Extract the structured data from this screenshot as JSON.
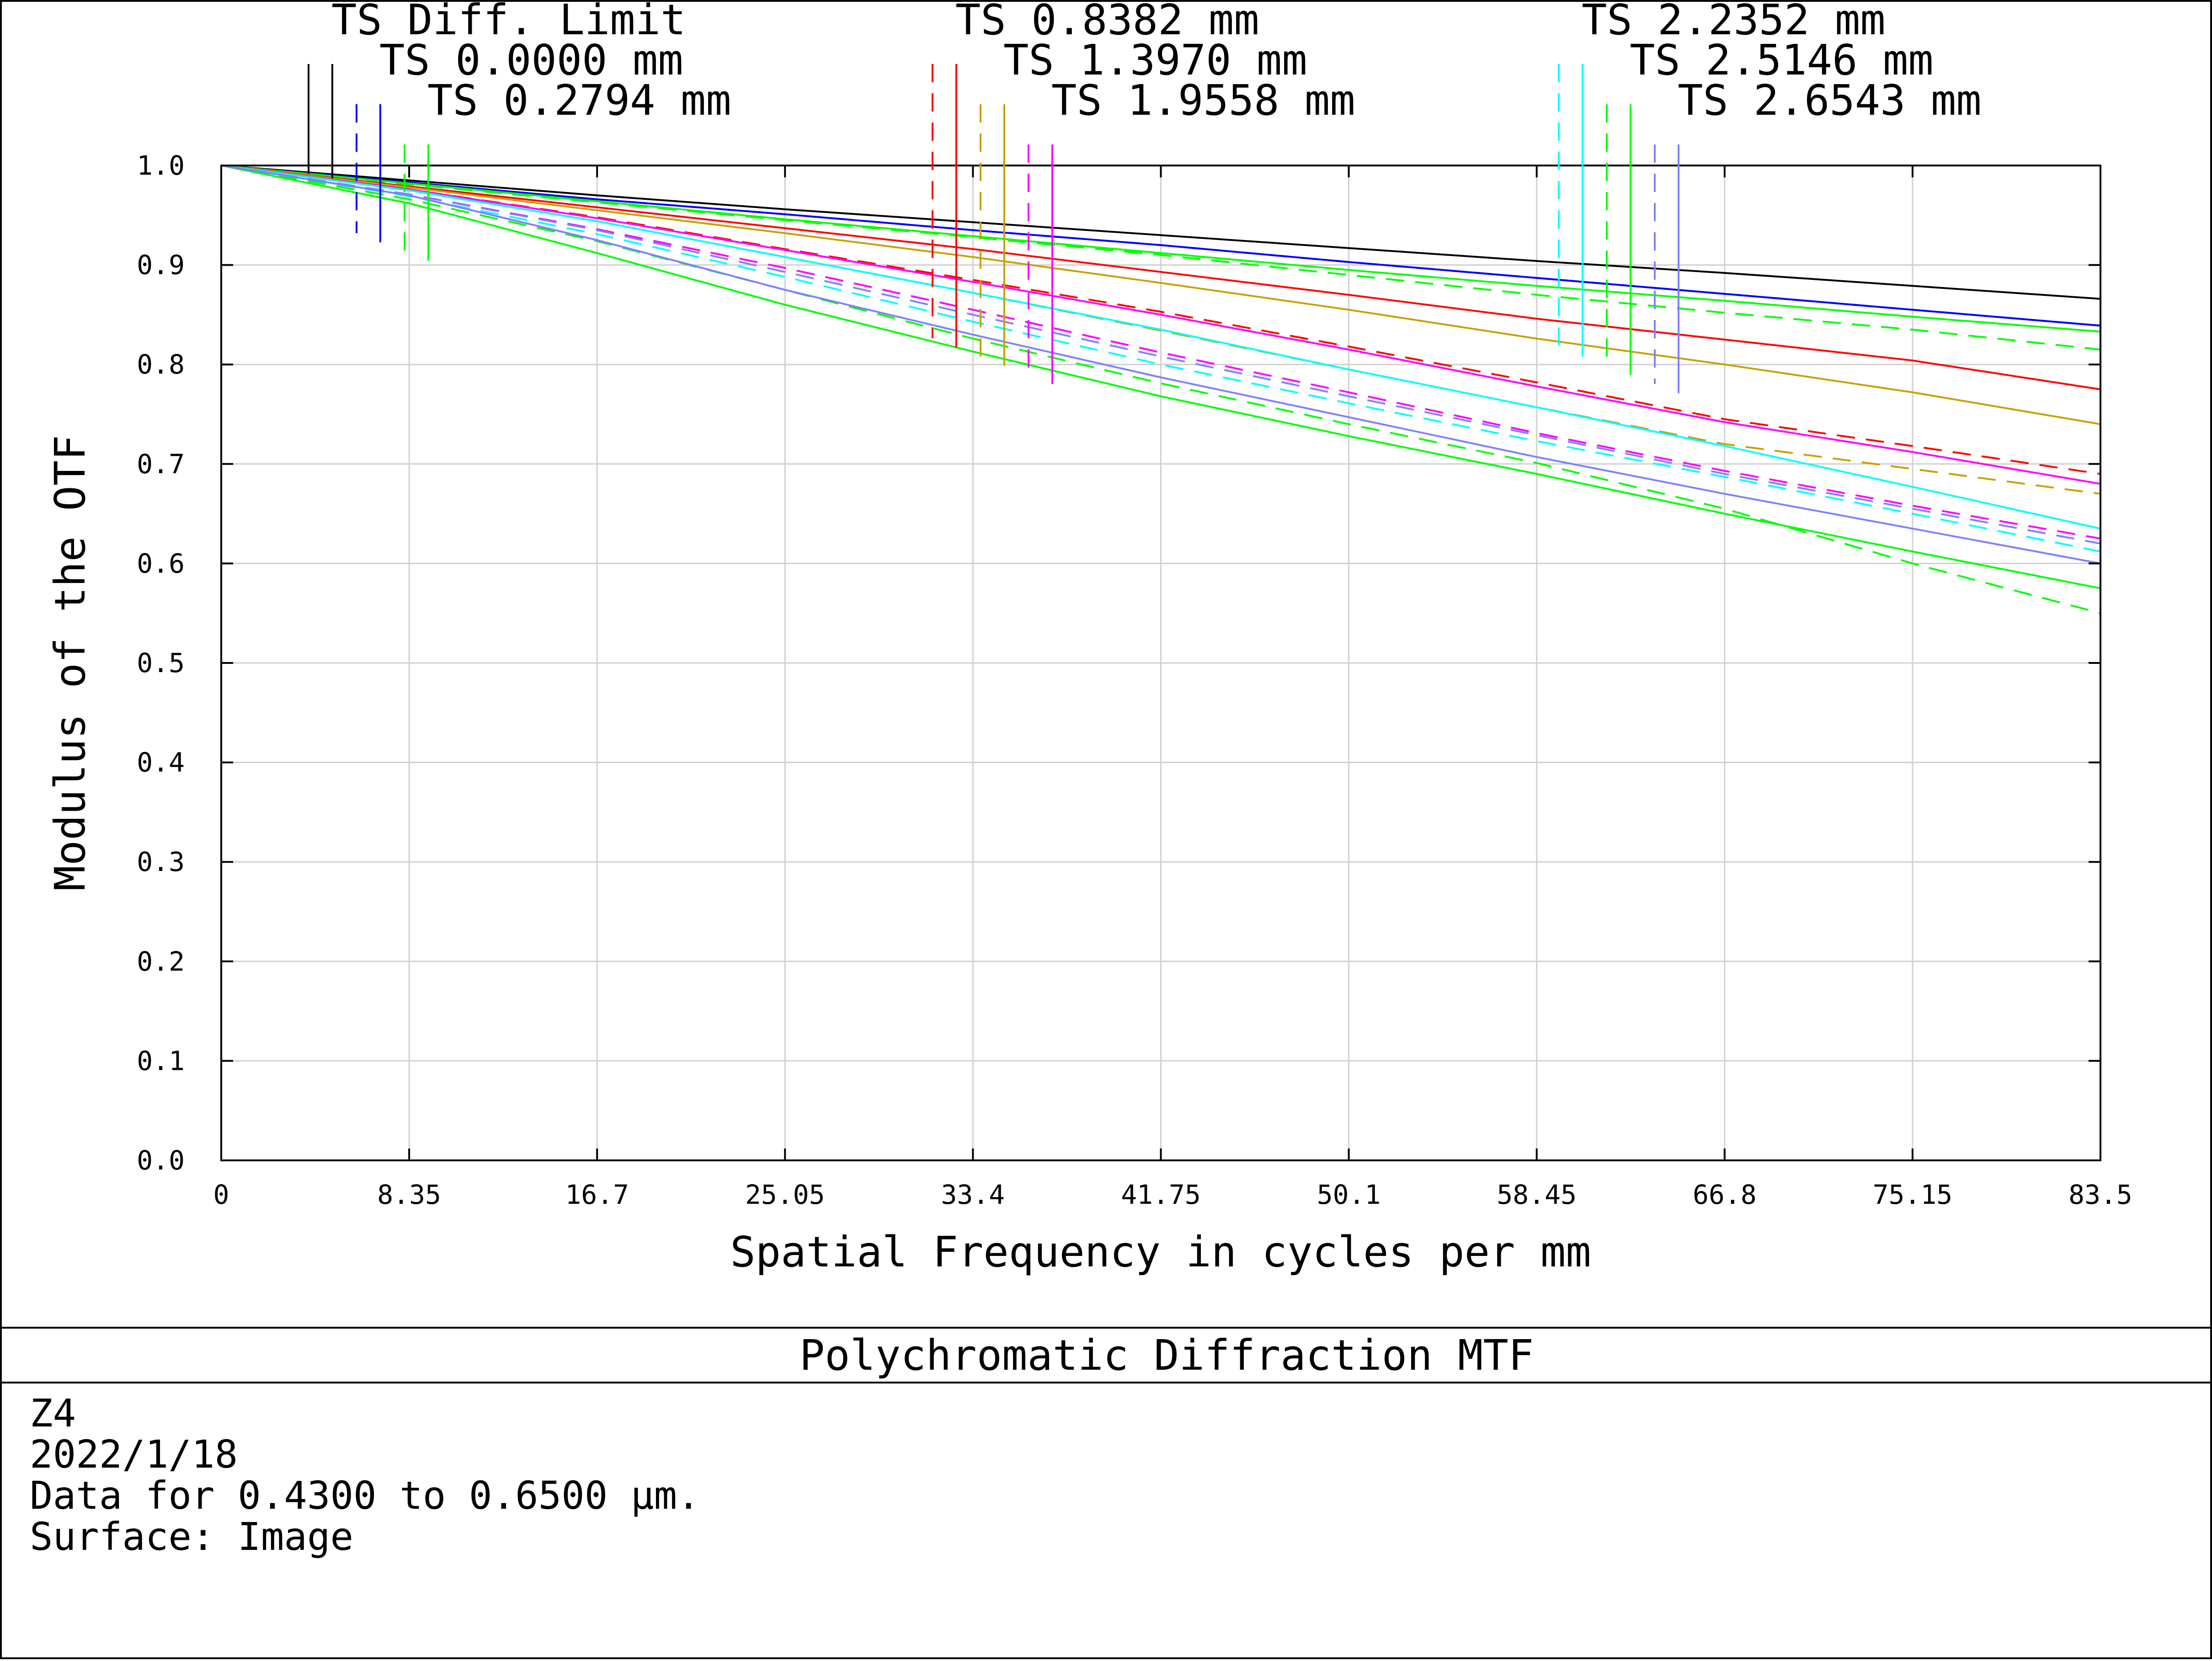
{
  "chart_data": {
    "type": "line",
    "title": "Polychromatic Diffraction MTF",
    "xlabel": "Spatial Frequency in cycles per mm",
    "ylabel": "Modulus of the OTF",
    "xlim": [
      0,
      83.5
    ],
    "ylim": [
      0,
      1.0
    ],
    "x_ticks": [
      "0",
      "8.35",
      "16.7",
      "25.05",
      "33.4",
      "41.75",
      "50.1",
      "58.45",
      "66.8",
      "75.15",
      "83.5"
    ],
    "y_ticks": [
      "0.0",
      "0.1",
      "0.2",
      "0.3",
      "0.4",
      "0.5",
      "0.6",
      "0.7",
      "0.8",
      "0.9",
      "1.0"
    ],
    "grid": true,
    "legend_placement": "top",
    "x": [
      0,
      8.35,
      16.7,
      25.05,
      33.4,
      41.75,
      50.1,
      58.45,
      66.8,
      75.15,
      83.5
    ],
    "series": [
      {
        "name": "TS Diff. Limit",
        "color": "#000000",
        "dash": false,
        "values": [
          1.0,
          0.985,
          0.97,
          0.956,
          0.943,
          0.93,
          0.917,
          0.904,
          0.892,
          0.879,
          0.866
        ]
      },
      {
        "name": "TS 0.0000 mm",
        "color": "#0000ff",
        "dash": false,
        "values": [
          1.0,
          0.983,
          0.966,
          0.951,
          0.935,
          0.92,
          0.903,
          0.887,
          0.871,
          0.855,
          0.839
        ]
      },
      {
        "name": "TS 0.0000 mm",
        "color": "#0000ff",
        "dash": true,
        "values": [
          1.0,
          0.983,
          0.966,
          0.951,
          0.935,
          0.92,
          0.903,
          0.887,
          0.871,
          0.855,
          0.839
        ]
      },
      {
        "name": "TS 0.2794 mm",
        "color": "#00ff00",
        "dash": false,
        "values": [
          1.0,
          0.982,
          0.964,
          0.946,
          0.929,
          0.912,
          0.895,
          0.879,
          0.864,
          0.848,
          0.833
        ]
      },
      {
        "name": "TS 0.2794 mm",
        "color": "#00ff00",
        "dash": true,
        "values": [
          1.0,
          0.981,
          0.963,
          0.945,
          0.928,
          0.91,
          0.89,
          0.87,
          0.852,
          0.835,
          0.815
        ]
      },
      {
        "name": "TS 0.8382 mm",
        "color": "#ff0000",
        "dash": false,
        "values": [
          1.0,
          0.979,
          0.958,
          0.937,
          0.916,
          0.893,
          0.87,
          0.846,
          0.825,
          0.804,
          0.775
        ]
      },
      {
        "name": "TS 0.8382 mm",
        "color": "#ff0000",
        "dash": true,
        "values": [
          1.0,
          0.976,
          0.948,
          0.916,
          0.885,
          0.853,
          0.818,
          0.782,
          0.745,
          0.718,
          0.69
        ]
      },
      {
        "name": "TS 1.3970 mm",
        "color": "#c8a000",
        "dash": false,
        "values": [
          1.0,
          0.978,
          0.955,
          0.932,
          0.908,
          0.882,
          0.855,
          0.826,
          0.8,
          0.772,
          0.74
        ]
      },
      {
        "name": "TS 1.3970 mm",
        "color": "#c8a000",
        "dash": true,
        "values": [
          1.0,
          0.975,
          0.944,
          0.908,
          0.872,
          0.834,
          0.795,
          0.757,
          0.72,
          0.695,
          0.67
        ]
      },
      {
        "name": "TS 1.9558 mm",
        "color": "#ff00ff",
        "dash": false,
        "values": [
          1.0,
          0.976,
          0.947,
          0.915,
          0.883,
          0.85,
          0.815,
          0.778,
          0.742,
          0.712,
          0.68
        ]
      },
      {
        "name": "TS 1.9558 mm",
        "color": "#ff00ff",
        "dash": true,
        "values": [
          1.0,
          0.971,
          0.936,
          0.897,
          0.855,
          0.812,
          0.772,
          0.731,
          0.693,
          0.658,
          0.625
        ]
      },
      {
        "name": "TS 2.2352 mm",
        "color": "#00ffff",
        "dash": false,
        "values": [
          1.0,
          0.975,
          0.944,
          0.908,
          0.872,
          0.835,
          0.795,
          0.757,
          0.718,
          0.677,
          0.635
        ]
      },
      {
        "name": "TS 2.2352 mm",
        "color": "#00ffff",
        "dash": true,
        "values": [
          1.0,
          0.969,
          0.931,
          0.888,
          0.843,
          0.8,
          0.761,
          0.723,
          0.687,
          0.65,
          0.612
        ]
      },
      {
        "name": "TS 2.5146 mm",
        "color": "#00ff00",
        "dash": false,
        "values": [
          1.0,
          0.962,
          0.912,
          0.86,
          0.813,
          0.768,
          0.728,
          0.69,
          0.65,
          0.612,
          0.575
        ]
      },
      {
        "name": "TS 2.5146 mm",
        "color": "#00ff00",
        "dash": true,
        "values": [
          1.0,
          0.966,
          0.924,
          0.875,
          0.826,
          0.781,
          0.74,
          0.701,
          0.655,
          0.6,
          0.55
        ]
      },
      {
        "name": "TS 2.6543 mm",
        "color": "#8080ff",
        "dash": false,
        "values": [
          1.0,
          0.97,
          0.925,
          0.875,
          0.83,
          0.787,
          0.747,
          0.707,
          0.67,
          0.635,
          0.6
        ]
      },
      {
        "name": "TS 2.6543 mm",
        "color": "#8080ff",
        "dash": true,
        "values": [
          1.0,
          0.971,
          0.935,
          0.893,
          0.85,
          0.808,
          0.768,
          0.729,
          0.69,
          0.655,
          0.62
        ]
      }
    ],
    "legend": [
      {
        "label": "TS Diff. Limit",
        "color": "#000000"
      },
      {
        "label": "TS 0.0000 mm",
        "color": "#0000ff"
      },
      {
        "label": "TS 0.2794 mm",
        "color": "#00ff00"
      },
      {
        "label": "TS 0.8382 mm",
        "color": "#ff0000"
      },
      {
        "label": "TS 1.3970 mm",
        "color": "#c8a000"
      },
      {
        "label": "TS 1.9558 mm",
        "color": "#ff00ff"
      },
      {
        "label": "TS 2.2352 mm",
        "color": "#00ffff"
      },
      {
        "label": "TS 2.5146 mm",
        "color": "#00ff00"
      },
      {
        "label": "TS 2.6543 mm",
        "color": "#8080ff"
      }
    ]
  },
  "info": {
    "lens_name": "Z4",
    "date": "2022/1/18",
    "wavelength_text": "Data for 0.4300 to 0.6500 µm.",
    "surface_text": "Surface: Image"
  }
}
